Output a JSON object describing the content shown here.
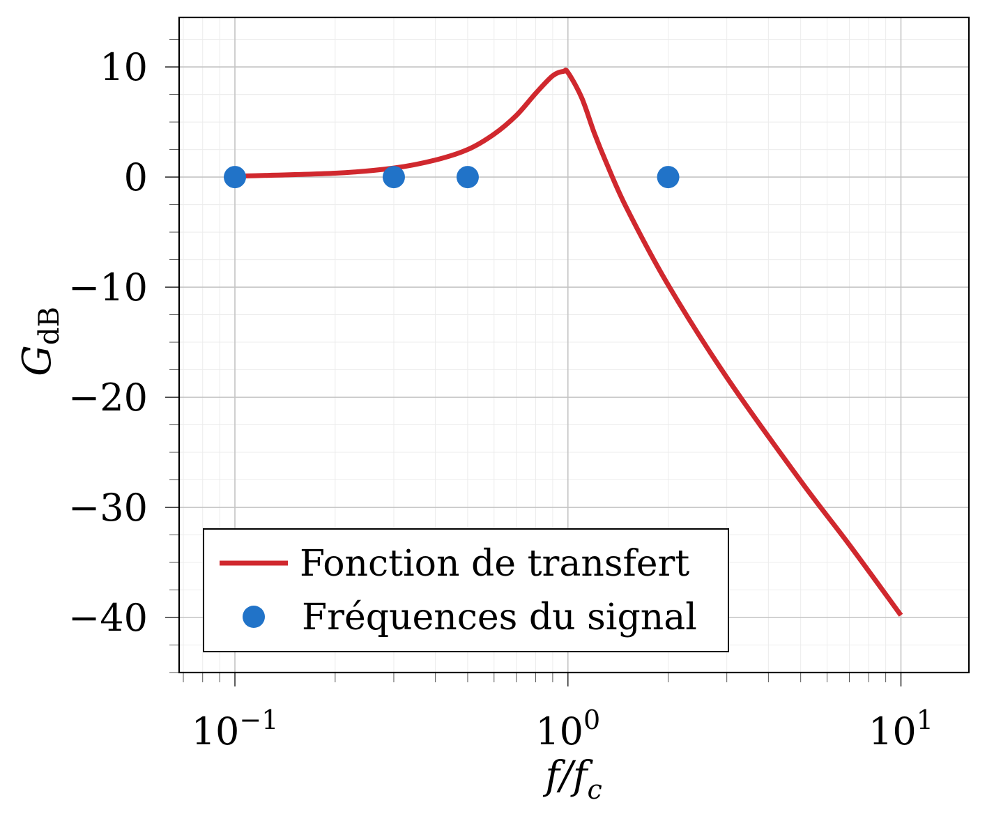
{
  "chart_data": {
    "type": "line",
    "xscale": "log",
    "xlim": [
      0.068,
      16
    ],
    "ylim": [
      -45,
      14.5
    ],
    "grid": true,
    "legend_position": "bottom-left",
    "xlabel": "f/f_c",
    "xlabel_parts": {
      "main": "f/f",
      "sub": "c"
    },
    "ylabel": "G_dB",
    "ylabel_parts": {
      "main": "G",
      "sub": "dB"
    },
    "x_ticks": [
      {
        "value": 0.1,
        "base": "10",
        "exp": "−1"
      },
      {
        "value": 1,
        "base": "10",
        "exp": "0"
      },
      {
        "value": 10,
        "base": "10",
        "exp": "1"
      }
    ],
    "y_ticks": [
      {
        "value": 10,
        "label": "10"
      },
      {
        "value": 0,
        "label": "0"
      },
      {
        "value": -10,
        "label": "−10"
      },
      {
        "value": -20,
        "label": "−20"
      },
      {
        "value": -30,
        "label": "−30"
      },
      {
        "value": -40,
        "label": "−40"
      }
    ],
    "series": [
      {
        "name": "Fonction de transfert",
        "kind": "line",
        "color": "#d0282e",
        "x": [
          0.1,
          0.2,
          0.3,
          0.4,
          0.5,
          0.6,
          0.7,
          0.8,
          0.9,
          0.97,
          1.0,
          1.1,
          1.2,
          1.3,
          1.5,
          2.0,
          3.0,
          5.0,
          7.0,
          10.0
        ],
        "y": [
          0.08,
          0.35,
          0.82,
          1.55,
          2.5,
          3.9,
          5.6,
          7.6,
          9.2,
          9.6,
          9.5,
          7.2,
          4.0,
          1.4,
          -2.8,
          -9.8,
          -18.2,
          -27.6,
          -33.4,
          -39.8
        ]
      },
      {
        "name": "Fréquences du signal",
        "kind": "scatter",
        "color": "#2173c8",
        "x": [
          0.1,
          0.3,
          0.5,
          2.0
        ],
        "y": [
          0,
          0,
          0,
          0
        ]
      }
    ]
  }
}
